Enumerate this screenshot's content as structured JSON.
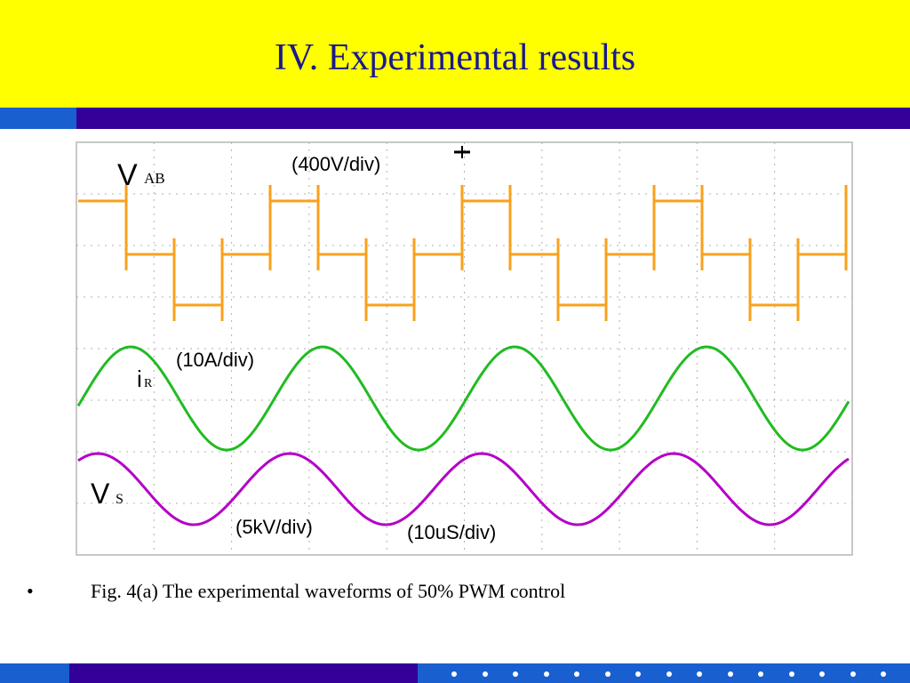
{
  "slide": {
    "title": "IV. Experimental results",
    "bullet": "•",
    "caption": "Fig. 4(a) The experimental waveforms of 50% PWM control"
  },
  "scope": {
    "labels": {
      "vab_main": "V",
      "vab_sub": "AB",
      "vab_scale": "(400V/div)",
      "ir_main": "i",
      "ir_sub": "R",
      "ir_scale": "(10A/div)",
      "vs_main": "V",
      "vs_sub": "S",
      "vs_scale": "(5kV/div)",
      "time_scale": "(10uS/div)"
    },
    "colors": {
      "vab": "#f7a21c",
      "ir": "#22bb22",
      "vs": "#b400c8",
      "grid": "#b0b0b0",
      "frame": "#c8c8c8"
    }
  },
  "theme": {
    "title_band": "#ffff00",
    "title_color": "#1a1a8c",
    "stripe_blue": "#1a5fcf",
    "stripe_purple": "#33009a"
  }
}
